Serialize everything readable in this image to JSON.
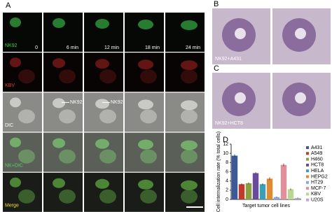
{
  "panels": {
    "A": {
      "label": "A",
      "times": [
        "0",
        "6 min",
        "12 min",
        "18 min",
        "24 min"
      ],
      "rows": [
        "NK92",
        "KBV",
        "DIC",
        "NK+DIC",
        "Merge"
      ],
      "annotations": [
        "NK92",
        "NK92"
      ]
    },
    "B": {
      "label": "B",
      "caption": "NK92+A431"
    },
    "C": {
      "label": "C",
      "caption": "NK92+HCT8"
    },
    "D": {
      "label": "D"
    }
  },
  "chart_data": {
    "type": "bar",
    "ylabel": "Cell internalization rate (% total cells)",
    "xlabel": "Target tumor cell lines",
    "categories": [
      "A431",
      "A549",
      "H460",
      "HCT8",
      "HELA",
      "HEPG2",
      "HT29",
      "MCF-7",
      "KBV",
      "U20S"
    ],
    "values": [
      9.5,
      3.3,
      3.5,
      5.7,
      3.3,
      4.5,
      0.5,
      7.5,
      2.2,
      0.3
    ],
    "errors": [
      0.3,
      0.2,
      0.2,
      0.2,
      0.2,
      0.3,
      0.1,
      0.3,
      0.2,
      0.1
    ],
    "colors": [
      "#3c5a9a",
      "#c0392b",
      "#8aa040",
      "#6a4a9a",
      "#3aa0b8",
      "#e08a30",
      "#8aa8d8",
      "#e0909a",
      "#b8d890",
      "#b8a8d8"
    ],
    "ylim": [
      0,
      12
    ],
    "yticks": [
      0,
      2,
      4,
      6,
      8,
      10,
      12
    ]
  }
}
